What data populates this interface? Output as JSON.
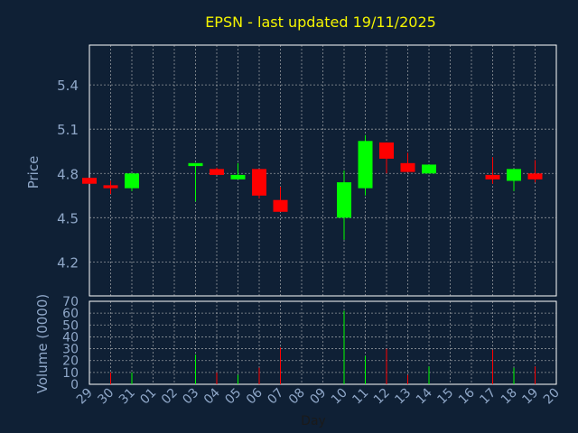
{
  "colors": {
    "background": "#0f2035",
    "title": "#f5f500",
    "axis_text": "#8fa7c8",
    "up": "#00ff00",
    "down": "#ff0000",
    "grid": "#c8c8c8"
  },
  "chart_data": {
    "type": "candlestick",
    "title": "EPSN - last updated 19/11/2025",
    "xlabel": "Day",
    "price_ylabel": "Price",
    "volume_ylabel": "Volume (0000)",
    "x_ticks": [
      "29",
      "30",
      "31",
      "01",
      "02",
      "03",
      "04",
      "05",
      "06",
      "07",
      "08",
      "09",
      "10",
      "11",
      "12",
      "13",
      "14",
      "15",
      "16",
      "17",
      "18",
      "19",
      "20"
    ],
    "price_ylim": [
      3.97,
      5.67
    ],
    "price_yticks": [
      4.2,
      4.5,
      4.8,
      5.1,
      5.4
    ],
    "volume_ylim": [
      0,
      70
    ],
    "volume_yticks": [
      0,
      10,
      20,
      30,
      40,
      50,
      60,
      70
    ],
    "grid": true,
    "candles": [
      {
        "day": "29",
        "open": 4.77,
        "close": 4.73,
        "high": 4.77,
        "low": 4.73
      },
      {
        "day": "30",
        "open": 4.72,
        "close": 4.7,
        "high": 4.75,
        "low": 4.66
      },
      {
        "day": "31",
        "open": 4.7,
        "close": 4.8,
        "high": 4.8,
        "low": 4.68
      },
      {
        "day": "03",
        "open": 4.85,
        "close": 4.87,
        "high": 4.87,
        "low": 4.61
      },
      {
        "day": "04",
        "open": 4.83,
        "close": 4.79,
        "high": 4.84,
        "low": 4.79
      },
      {
        "day": "05",
        "open": 4.76,
        "close": 4.79,
        "high": 4.87,
        "low": 4.76
      },
      {
        "day": "06",
        "open": 4.83,
        "close": 4.65,
        "high": 4.83,
        "low": 4.63
      },
      {
        "day": "07",
        "open": 4.62,
        "close": 4.54,
        "high": 4.71,
        "low": 4.54
      },
      {
        "day": "10",
        "open": 4.5,
        "close": 4.74,
        "high": 4.82,
        "low": 4.35
      },
      {
        "day": "11",
        "open": 4.7,
        "close": 5.02,
        "high": 5.06,
        "low": 4.65
      },
      {
        "day": "12",
        "open": 5.01,
        "close": 4.9,
        "high": 5.01,
        "low": 4.8
      },
      {
        "day": "13",
        "open": 4.87,
        "close": 4.81,
        "high": 4.94,
        "low": 4.81
      },
      {
        "day": "14",
        "open": 4.8,
        "close": 4.86,
        "high": 4.86,
        "low": 4.8
      },
      {
        "day": "17",
        "open": 4.79,
        "close": 4.76,
        "high": 4.91,
        "low": 4.73
      },
      {
        "day": "18",
        "open": 4.75,
        "close": 4.83,
        "high": 4.83,
        "low": 4.68
      },
      {
        "day": "19",
        "open": 4.8,
        "close": 4.76,
        "high": 4.89,
        "low": 4.74
      }
    ],
    "volume": [
      {
        "day": "29",
        "value": 0,
        "direction": "down"
      },
      {
        "day": "30",
        "value": 10,
        "direction": "down"
      },
      {
        "day": "31",
        "value": 10,
        "direction": "up"
      },
      {
        "day": "03",
        "value": 25,
        "direction": "up"
      },
      {
        "day": "04",
        "value": 10,
        "direction": "down"
      },
      {
        "day": "05",
        "value": 8,
        "direction": "up"
      },
      {
        "day": "06",
        "value": 14,
        "direction": "down"
      },
      {
        "day": "07",
        "value": 31,
        "direction": "down"
      },
      {
        "day": "10",
        "value": 62,
        "direction": "up"
      },
      {
        "day": "11",
        "value": 24,
        "direction": "up"
      },
      {
        "day": "12",
        "value": 30,
        "direction": "down"
      },
      {
        "day": "13",
        "value": 8,
        "direction": "down"
      },
      {
        "day": "14",
        "value": 15,
        "direction": "up"
      },
      {
        "day": "17",
        "value": 29,
        "direction": "down"
      },
      {
        "day": "18",
        "value": 14,
        "direction": "up"
      },
      {
        "day": "19",
        "value": 15,
        "direction": "down"
      }
    ]
  }
}
